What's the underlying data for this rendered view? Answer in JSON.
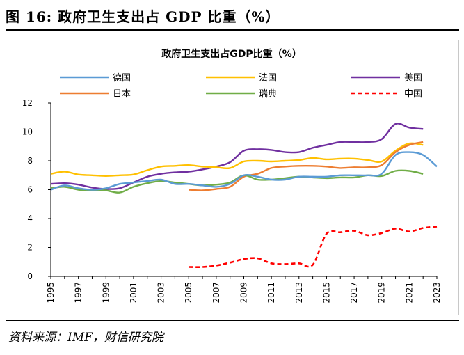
{
  "figure": {
    "title": "图 16:  政府卫生支出占 GDP 比重（%）",
    "source": "资料来源：IMF，财信研究院"
  },
  "chart_data": {
    "type": "line",
    "title": "政府卫生支出占GDP比重（%）",
    "xlabel": "",
    "ylabel": "",
    "ylim": [
      0,
      12
    ],
    "yticks": [
      "0",
      "2",
      "4",
      "6",
      "8",
      "10",
      "12"
    ],
    "xlim": [
      1995,
      2023
    ],
    "xticks": [
      "1995",
      "1997",
      "1999",
      "2001",
      "2003",
      "2005",
      "2007",
      "2009",
      "2011",
      "2013",
      "2015",
      "2017",
      "2019",
      "2021",
      "2023"
    ],
    "grid": false,
    "legend_placement": "top",
    "series": [
      {
        "name": "德国",
        "color": "#5b9bd5",
        "dash": "solid",
        "x": [
          1995,
          1996,
          1997,
          1998,
          1999,
          2000,
          2001,
          2002,
          2003,
          2004,
          2005,
          2006,
          2007,
          2008,
          2009,
          2010,
          2011,
          2012,
          2013,
          2014,
          2015,
          2016,
          2017,
          2018,
          2019,
          2020,
          2021,
          2022,
          2023
        ],
        "values": [
          6.0,
          6.3,
          6.1,
          6.0,
          6.1,
          6.4,
          6.5,
          6.6,
          6.7,
          6.4,
          6.4,
          6.3,
          6.2,
          6.4,
          7.0,
          6.9,
          6.7,
          6.7,
          6.9,
          6.9,
          6.9,
          7.0,
          7.0,
          7.0,
          7.1,
          8.4,
          8.6,
          8.4,
          7.6
        ]
      },
      {
        "name": "法国",
        "color": "#ffc000",
        "dash": "solid",
        "x": [
          1995,
          1996,
          1997,
          1998,
          1999,
          2000,
          2001,
          2002,
          2003,
          2004,
          2005,
          2006,
          2007,
          2008,
          2009,
          2010,
          2011,
          2012,
          2013,
          2014,
          2015,
          2016,
          2017,
          2018,
          2019,
          2020,
          2021,
          2022
        ],
        "values": [
          7.1,
          7.25,
          7.05,
          7.0,
          6.95,
          7.0,
          7.05,
          7.35,
          7.6,
          7.65,
          7.7,
          7.6,
          7.55,
          7.5,
          7.95,
          8.0,
          7.95,
          8.0,
          8.05,
          8.2,
          8.1,
          8.15,
          8.15,
          8.05,
          7.95,
          8.7,
          9.2,
          9.1
        ]
      },
      {
        "name": "美国",
        "color": "#7030a0",
        "dash": "solid",
        "x": [
          1995,
          1996,
          1997,
          1998,
          1999,
          2000,
          2001,
          2002,
          2003,
          2004,
          2005,
          2006,
          2007,
          2008,
          2009,
          2010,
          2011,
          2012,
          2013,
          2014,
          2015,
          2016,
          2017,
          2018,
          2019,
          2020,
          2021,
          2022
        ],
        "values": [
          6.4,
          6.45,
          6.35,
          6.15,
          6.05,
          6.1,
          6.5,
          6.9,
          7.1,
          7.2,
          7.25,
          7.4,
          7.6,
          7.9,
          8.7,
          8.8,
          8.75,
          8.6,
          8.6,
          8.9,
          9.1,
          9.3,
          9.3,
          9.3,
          9.5,
          10.55,
          10.3,
          10.2
        ]
      },
      {
        "name": "日本",
        "color": "#ed7d31",
        "dash": "solid",
        "x": [
          2005,
          2006,
          2007,
          2008,
          2009,
          2010,
          2011,
          2012,
          2013,
          2014,
          2015,
          2016,
          2017,
          2018,
          2019,
          2020,
          2021,
          2022
        ],
        "values": [
          6.0,
          5.95,
          6.05,
          6.2,
          6.9,
          7.1,
          7.5,
          7.6,
          7.65,
          7.65,
          7.6,
          7.5,
          7.55,
          7.55,
          7.7,
          8.6,
          9.1,
          9.3
        ]
      },
      {
        "name": "瑞典",
        "color": "#70ad47",
        "dash": "solid",
        "x": [
          1995,
          1996,
          1997,
          1998,
          1999,
          2000,
          2001,
          2002,
          2003,
          2004,
          2005,
          2006,
          2007,
          2008,
          2009,
          2010,
          2011,
          2012,
          2013,
          2014,
          2015,
          2016,
          2017,
          2018,
          2019,
          2020,
          2021,
          2022
        ],
        "values": [
          6.1,
          6.2,
          6.0,
          5.95,
          5.95,
          5.8,
          6.2,
          6.45,
          6.6,
          6.5,
          6.4,
          6.3,
          6.35,
          6.5,
          7.0,
          6.7,
          6.7,
          6.8,
          6.9,
          6.85,
          6.8,
          6.85,
          6.85,
          7.0,
          6.95,
          7.3,
          7.3,
          7.1
        ]
      },
      {
        "name": "中国",
        "color": "#ff0000",
        "dash": "dashed",
        "x": [
          2005,
          2006,
          2007,
          2008,
          2009,
          2010,
          2011,
          2012,
          2013,
          2014,
          2015,
          2016,
          2017,
          2018,
          2019,
          2020,
          2021,
          2022,
          2023
        ],
        "values": [
          0.65,
          0.65,
          0.75,
          0.95,
          1.2,
          1.25,
          0.9,
          0.85,
          0.9,
          0.8,
          2.95,
          3.05,
          3.15,
          2.85,
          3.0,
          3.3,
          3.1,
          3.35,
          3.45
        ]
      }
    ]
  }
}
